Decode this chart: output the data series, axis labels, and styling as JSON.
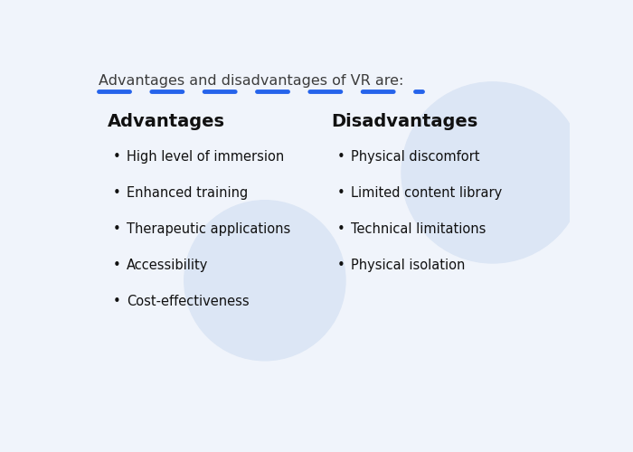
{
  "title": "Advantages and disadvantages of VR are:",
  "title_color": "#3d3d3d",
  "title_fontsize": 11.5,
  "background_color": "#f0f4fb",
  "left_header": "Advantages",
  "right_header": "Disadvantages",
  "header_color": "#111111",
  "header_fontsize": 14,
  "advantages": [
    "High level of immersion",
    "Enhanced training",
    "Therapeutic applications",
    "Accessibility",
    "Cost-effectiveness"
  ],
  "disadvantages": [
    "Physical discomfort",
    "Limited content library",
    "Technical limitations",
    "Physical isolation"
  ],
  "item_color": "#111111",
  "item_fontsize": 10.5,
  "bullet": "•",
  "dashed_line_color": "#2563eb",
  "circle_color": "#dce6f5"
}
